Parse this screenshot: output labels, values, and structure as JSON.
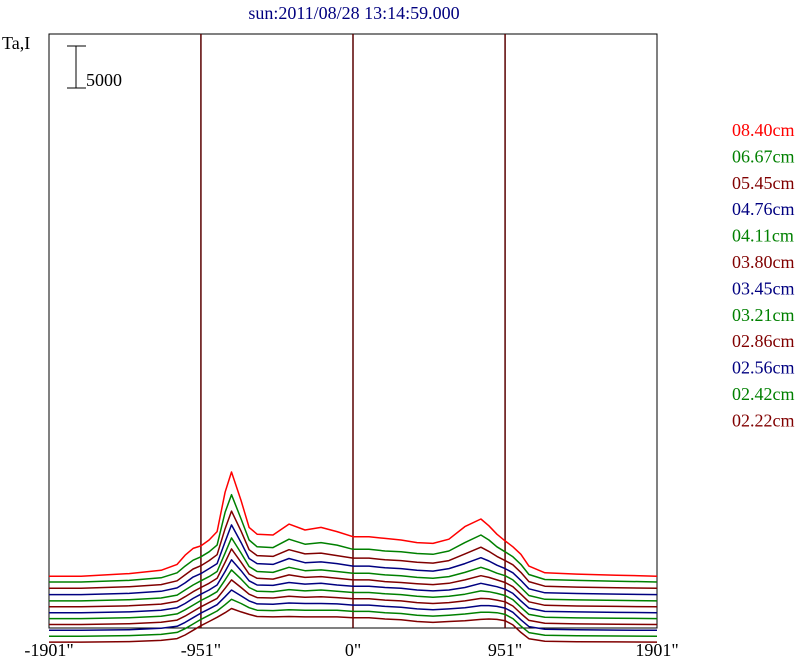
{
  "chart_data": {
    "type": "line",
    "title": "sun:2011/08/28 13:14:59.000",
    "ylabel": "Ta,I",
    "scale_bar_label": "5000",
    "scale_bar_value": 5000,
    "xlim": [
      -1901,
      1901
    ],
    "x_ticks": [
      {
        "value": -1901,
        "label": "-1901\""
      },
      {
        "value": -951,
        "label": "-951\""
      },
      {
        "value": 0,
        "label": "0\""
      },
      {
        "value": 951,
        "label": "951\""
      },
      {
        "value": 1901,
        "label": "1901\""
      }
    ],
    "reference_lines": [
      -951,
      0,
      951
    ],
    "legend_placement": "right",
    "x": [
      -1901,
      -1700,
      -1400,
      -1200,
      -1100,
      -1050,
      -1000,
      -951,
      -900,
      -850,
      -800,
      -760,
      -700,
      -650,
      -600,
      -500,
      -400,
      -300,
      -200,
      -100,
      0,
      100,
      200,
      300,
      400,
      500,
      600,
      700,
      800,
      850,
      900,
      951,
      1000,
      1050,
      1100,
      1200,
      1400,
      1650,
      1901
    ],
    "series": [
      {
        "name": "08.40cm",
        "color": "#ff0000",
        "offset": 7600,
        "values": [
          0,
          0,
          300,
          700,
          1400,
          2500,
          3300,
          3600,
          4300,
          5300,
          10000,
          12400,
          9000,
          5800,
          5000,
          4900,
          6200,
          5500,
          5800,
          5300,
          4700,
          4700,
          4500,
          4300,
          4000,
          3900,
          4400,
          5900,
          6800,
          6000,
          5000,
          4200,
          3500,
          2600,
          1200,
          400,
          250,
          120,
          0
        ]
      },
      {
        "name": "06.67cm",
        "color": "#008000",
        "offset": 6900,
        "values": [
          0,
          0,
          200,
          500,
          1100,
          1900,
          2600,
          3000,
          3600,
          4400,
          8300,
          10400,
          7500,
          5000,
          4200,
          4100,
          5100,
          4500,
          4700,
          4400,
          3900,
          3900,
          3700,
          3600,
          3400,
          3300,
          3700,
          4700,
          5600,
          5000,
          4200,
          3600,
          3000,
          2100,
          900,
          300,
          200,
          100,
          0
        ]
      },
      {
        "name": "05.45cm",
        "color": "#800000",
        "offset": 6150,
        "values": [
          0,
          0,
          200,
          450,
          900,
          1600,
          2300,
          2700,
          3300,
          4000,
          7100,
          9200,
          6800,
          4600,
          3900,
          3800,
          4600,
          4100,
          4200,
          3900,
          3600,
          3600,
          3400,
          3300,
          3100,
          3000,
          3300,
          4100,
          4900,
          4400,
          3800,
          3300,
          2800,
          1900,
          800,
          250,
          150,
          80,
          0
        ]
      },
      {
        "name": "04.76cm",
        "color": "#000080",
        "offset": 5400,
        "values": [
          0,
          0,
          150,
          400,
          800,
          1400,
          2100,
          2500,
          3100,
          3700,
          6300,
          8300,
          6200,
          4300,
          3700,
          3600,
          4300,
          3800,
          3900,
          3700,
          3400,
          3400,
          3200,
          3100,
          2900,
          2800,
          3100,
          3700,
          4400,
          4000,
          3500,
          3100,
          2600,
          1700,
          700,
          220,
          130,
          70,
          0
        ]
      },
      {
        "name": "04.11cm",
        "color": "#008000",
        "offset": 4650,
        "values": [
          0,
          0,
          150,
          350,
          700,
          1300,
          1900,
          2400,
          2900,
          3500,
          5700,
          7500,
          5700,
          4100,
          3500,
          3400,
          4000,
          3600,
          3700,
          3500,
          3300,
          3300,
          3100,
          3000,
          2800,
          2700,
          2900,
          3400,
          4000,
          3700,
          3300,
          3000,
          2500,
          1600,
          650,
          200,
          120,
          60,
          0
        ]
      },
      {
        "name": "03.80cm",
        "color": "#800000",
        "offset": 3950,
        "values": [
          0,
          0,
          120,
          320,
          650,
          1200,
          1800,
          2300,
          2800,
          3400,
          5300,
          6900,
          5300,
          3900,
          3400,
          3300,
          3800,
          3500,
          3600,
          3400,
          3200,
          3200,
          3000,
          2900,
          2750,
          2650,
          2800,
          3200,
          3700,
          3500,
          3200,
          2900,
          2400,
          1500,
          600,
          180,
          100,
          50,
          0
        ]
      },
      {
        "name": "03.45cm",
        "color": "#000080",
        "offset": 3250,
        "values": [
          0,
          0,
          100,
          300,
          600,
          1100,
          1700,
          2200,
          2700,
          3300,
          4900,
          6300,
          5000,
          3800,
          3300,
          3250,
          3600,
          3400,
          3500,
          3300,
          3150,
          3150,
          3000,
          2900,
          2700,
          2600,
          2700,
          3000,
          3500,
          3300,
          3100,
          2800,
          2300,
          1400,
          550,
          160,
          90,
          40,
          0
        ]
      },
      {
        "name": "03.21cm",
        "color": "#008000",
        "offset": 2550,
        "values": [
          0,
          0,
          100,
          280,
          560,
          1050,
          1600,
          2150,
          2650,
          3200,
          4600,
          5800,
          4700,
          3700,
          3250,
          3200,
          3450,
          3300,
          3400,
          3250,
          3100,
          3100,
          2950,
          2850,
          2650,
          2550,
          2650,
          2900,
          3300,
          3200,
          3000,
          2750,
          2250,
          1350,
          500,
          150,
          80,
          40,
          0
        ]
      },
      {
        "name": "02.86cm",
        "color": "#800000",
        "offset": 1850,
        "values": [
          0,
          0,
          90,
          260,
          520,
          1000,
          1550,
          2100,
          2600,
          3100,
          4300,
          5300,
          4400,
          3600,
          3200,
          3150,
          3350,
          3250,
          3300,
          3200,
          3050,
          3050,
          2900,
          2800,
          2600,
          2500,
          2600,
          2800,
          3100,
          3050,
          2900,
          2700,
          2200,
          1300,
          480,
          140,
          70,
          35,
          0
        ]
      },
      {
        "name": "02.56cm",
        "color": "#000080",
        "offset": 1150,
        "values": [
          0,
          0,
          80,
          240,
          480,
          950,
          1500,
          2050,
          2550,
          3050,
          4000,
          4800,
          4100,
          3500,
          3150,
          3100,
          3250,
          3200,
          3200,
          3150,
          3000,
          3000,
          2850,
          2750,
          2550,
          2450,
          2550,
          2700,
          2950,
          2950,
          2850,
          2650,
          2150,
          1250,
          450,
          130,
          60,
          30,
          0
        ]
      },
      {
        "name": "02.42cm",
        "color": "#008000",
        "offset": 450,
        "values": [
          0,
          0,
          70,
          220,
          450,
          900,
          1450,
          2000,
          2500,
          3000,
          3750,
          4400,
          3900,
          3400,
          3100,
          3050,
          3150,
          3100,
          3100,
          3100,
          2950,
          2950,
          2800,
          2700,
          2500,
          2400,
          2500,
          2650,
          2850,
          2850,
          2800,
          2600,
          2100,
          1200,
          430,
          120,
          55,
          30,
          0
        ]
      },
      {
        "name": "02.22cm",
        "color": "#800000",
        "offset": -250,
        "values": [
          0,
          0,
          60,
          200,
          420,
          850,
          1400,
          1950,
          2450,
          2950,
          3500,
          4000,
          3600,
          3300,
          3050,
          3000,
          3050,
          3000,
          3000,
          3000,
          2900,
          2900,
          2750,
          2650,
          2450,
          2350,
          2450,
          2550,
          2700,
          2750,
          2700,
          2550,
          2050,
          1150,
          400,
          110,
          50,
          25,
          0
        ]
      }
    ]
  }
}
